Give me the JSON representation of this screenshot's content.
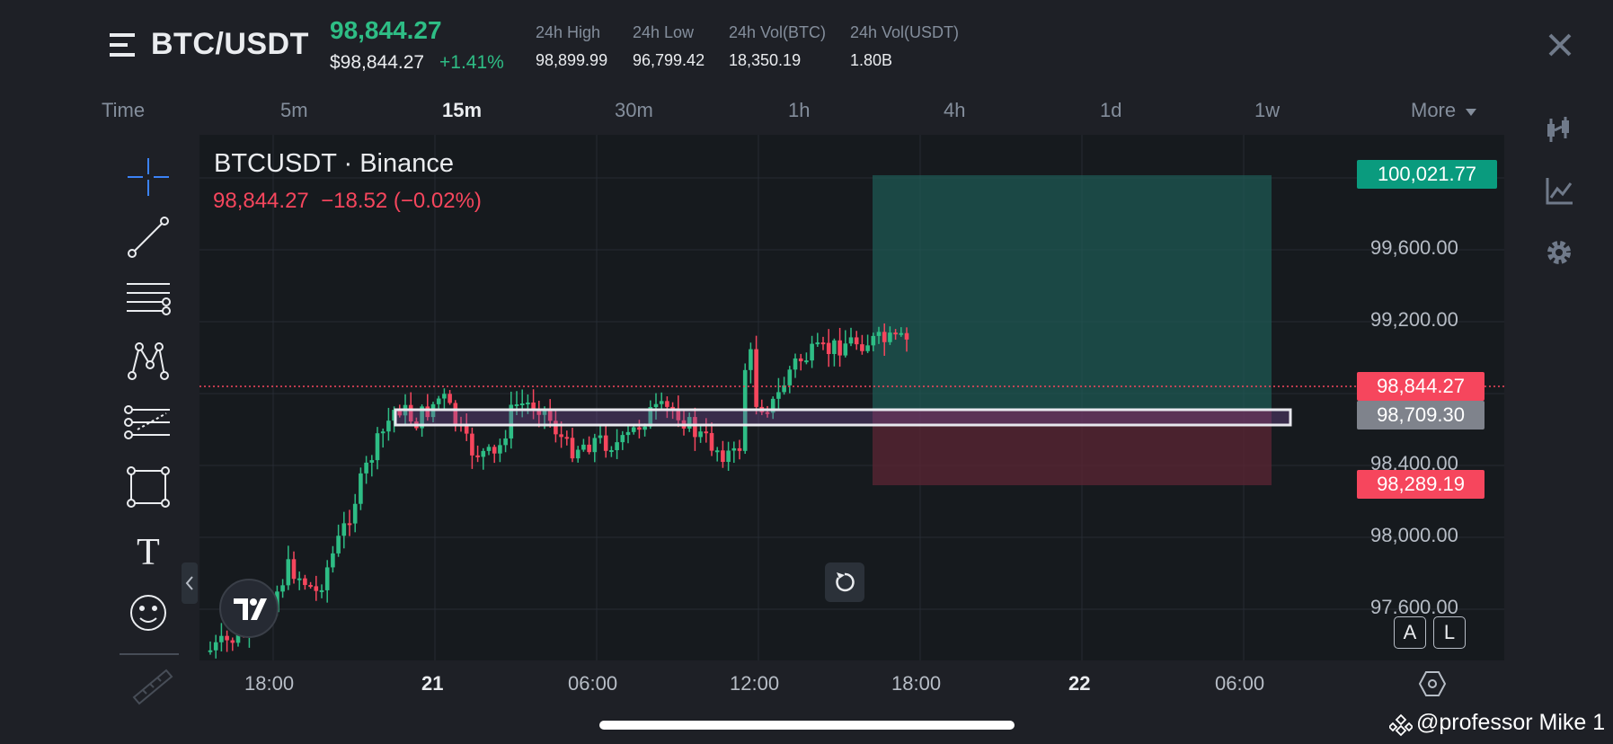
{
  "header": {
    "pair": "BTC/USDT",
    "last_price": "98,844.27",
    "usd_price": "$98,844.27",
    "change_pct": "+1.41%",
    "stats": [
      {
        "label": "24h High",
        "value": "98,899.99"
      },
      {
        "label": "24h Low",
        "value": "96,799.42"
      },
      {
        "label": "24h Vol(BTC)",
        "value": "18,350.19"
      },
      {
        "label": "24h Vol(USDT)",
        "value": "1.80B"
      }
    ],
    "close_icon": "close-icon",
    "menu_icon": "hamburger-menu-icon"
  },
  "timeframes": {
    "label": "Time",
    "options": [
      "5m",
      "15m",
      "30m",
      "1h",
      "4h",
      "1d",
      "1w"
    ],
    "active": "15m",
    "more": "More"
  },
  "chart": {
    "symbol_line": "BTCUSDT · Binance",
    "ohlc_line": "98,844.27  −18.52 (−0.02%)",
    "price_axis": [
      "99,600.00",
      "99,200.00",
      "98,400.00",
      "98,000.00",
      "97,600.00"
    ],
    "tags": {
      "target": "100,021.77",
      "current": "98,844.27",
      "entry": "98,709.30",
      "stop": "98,289.19"
    },
    "time_axis": [
      "18:00",
      "21",
      "06:00",
      "12:00",
      "18:00",
      "22",
      "06:00"
    ],
    "scale_buttons": [
      "A",
      "L"
    ],
    "logo": "TV",
    "colors": {
      "up": "#2ebd85",
      "down": "#f6465d",
      "profit_zone": "#1e5c55",
      "loss_zone": "#5c2634"
    }
  },
  "toolbar": {
    "tools": [
      "crosshair-icon",
      "trend-line-icon",
      "horizontal-lines-icon",
      "pattern-icon",
      "fib-icon",
      "rectangle-icon",
      "text-icon",
      "emoji-icon",
      "ruler-icon"
    ],
    "text_tool_glyph": "T"
  },
  "side_icons": [
    "candlestick-icon",
    "indicator-icon",
    "settings-icon"
  ],
  "watermark": "@professor Mike 1"
}
